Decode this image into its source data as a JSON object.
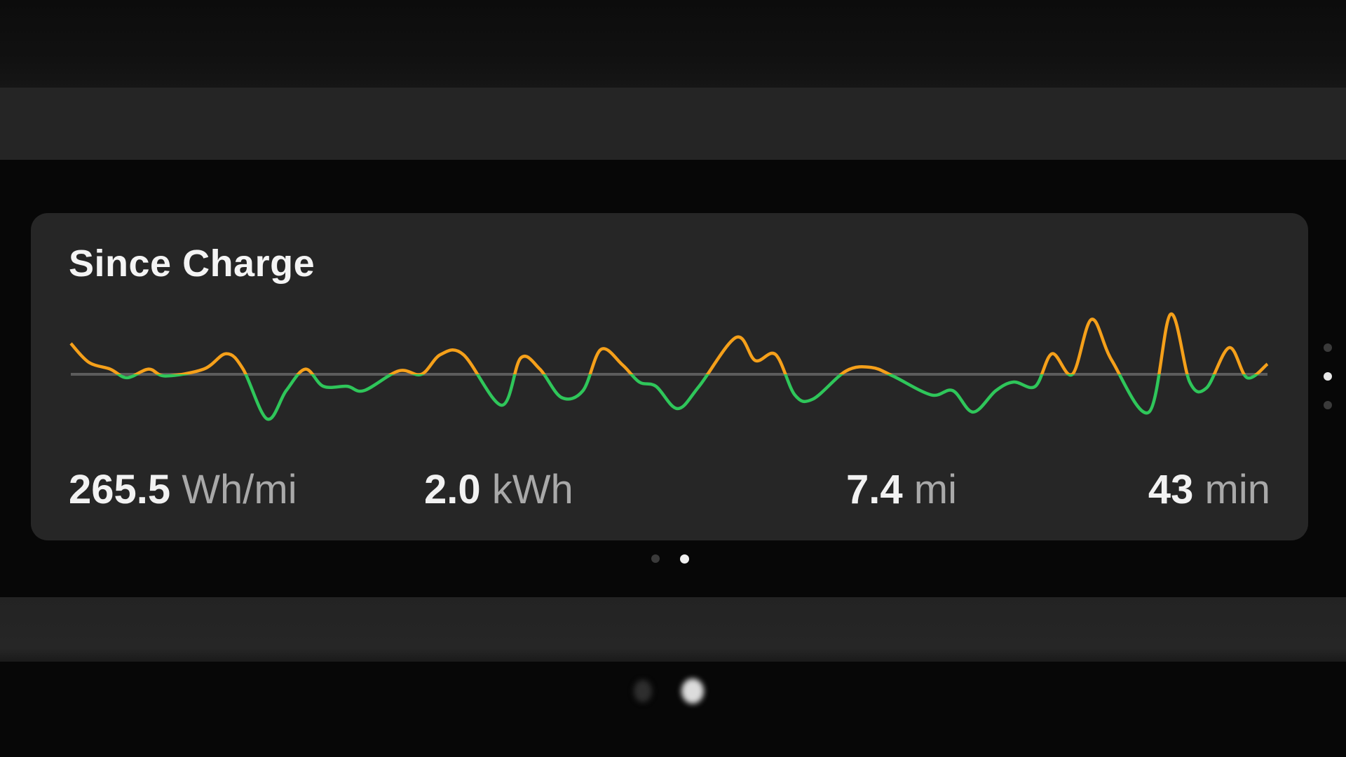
{
  "card": {
    "title": "Since Charge",
    "stats": [
      {
        "value": "265.5",
        "unit": "Wh/mi"
      },
      {
        "value": "2.0",
        "unit": "kWh"
      },
      {
        "value": "7.4",
        "unit": "mi"
      },
      {
        "value": "43 min",
        "unit": ""
      }
    ]
  },
  "colors": {
    "above_average": "#f5a01a",
    "below_average": "#2fc65a",
    "baseline": "#5c5c5c",
    "card_bg": "#262626"
  },
  "pagination": {
    "card_pages": 2,
    "card_active": 2,
    "vertical_pages": 3,
    "vertical_active": 2,
    "screen_pages": 2,
    "screen_active": 2
  },
  "chart_data": {
    "type": "line",
    "title": "",
    "xlabel": "",
    "ylabel": "",
    "grid": false,
    "baseline": 0,
    "x": [
      0,
      1.5,
      3.3,
      4.7,
      6.5,
      7.9,
      11.1,
      13.0,
      14.4,
      16.4,
      18.0,
      19.6,
      21.1,
      23.1,
      24.5,
      27.4,
      29.3,
      30.9,
      32.8,
      36.0,
      37.6,
      39.2,
      41.0,
      42.8,
      44.3,
      46.1,
      47.5,
      48.9,
      50.7,
      52.5,
      55.6,
      57.2,
      58.9,
      60.5,
      62.0,
      64.8,
      66.9,
      68.7,
      71.9,
      73.7,
      75.4,
      77.3,
      78.8,
      80.6,
      82.0,
      83.7,
      85.3,
      87.0,
      90.1,
      91.9,
      93.5,
      94.9,
      96.8,
      98.3,
      100
    ],
    "values": [
      36,
      14,
      6,
      -4,
      6,
      -2,
      6,
      24,
      6,
      -52,
      -19,
      6,
      -14,
      -14,
      -19,
      4,
      0,
      23,
      23,
      -36,
      19,
      6,
      -27,
      -19,
      29,
      11,
      -9,
      -14,
      -40,
      -14,
      43,
      16,
      23,
      -24,
      -29,
      4,
      8,
      -2,
      -24,
      -19,
      -44,
      -19,
      -9,
      -14,
      24,
      0,
      64,
      16,
      -44,
      70,
      -9,
      -16,
      31,
      -4,
      12
    ]
  }
}
